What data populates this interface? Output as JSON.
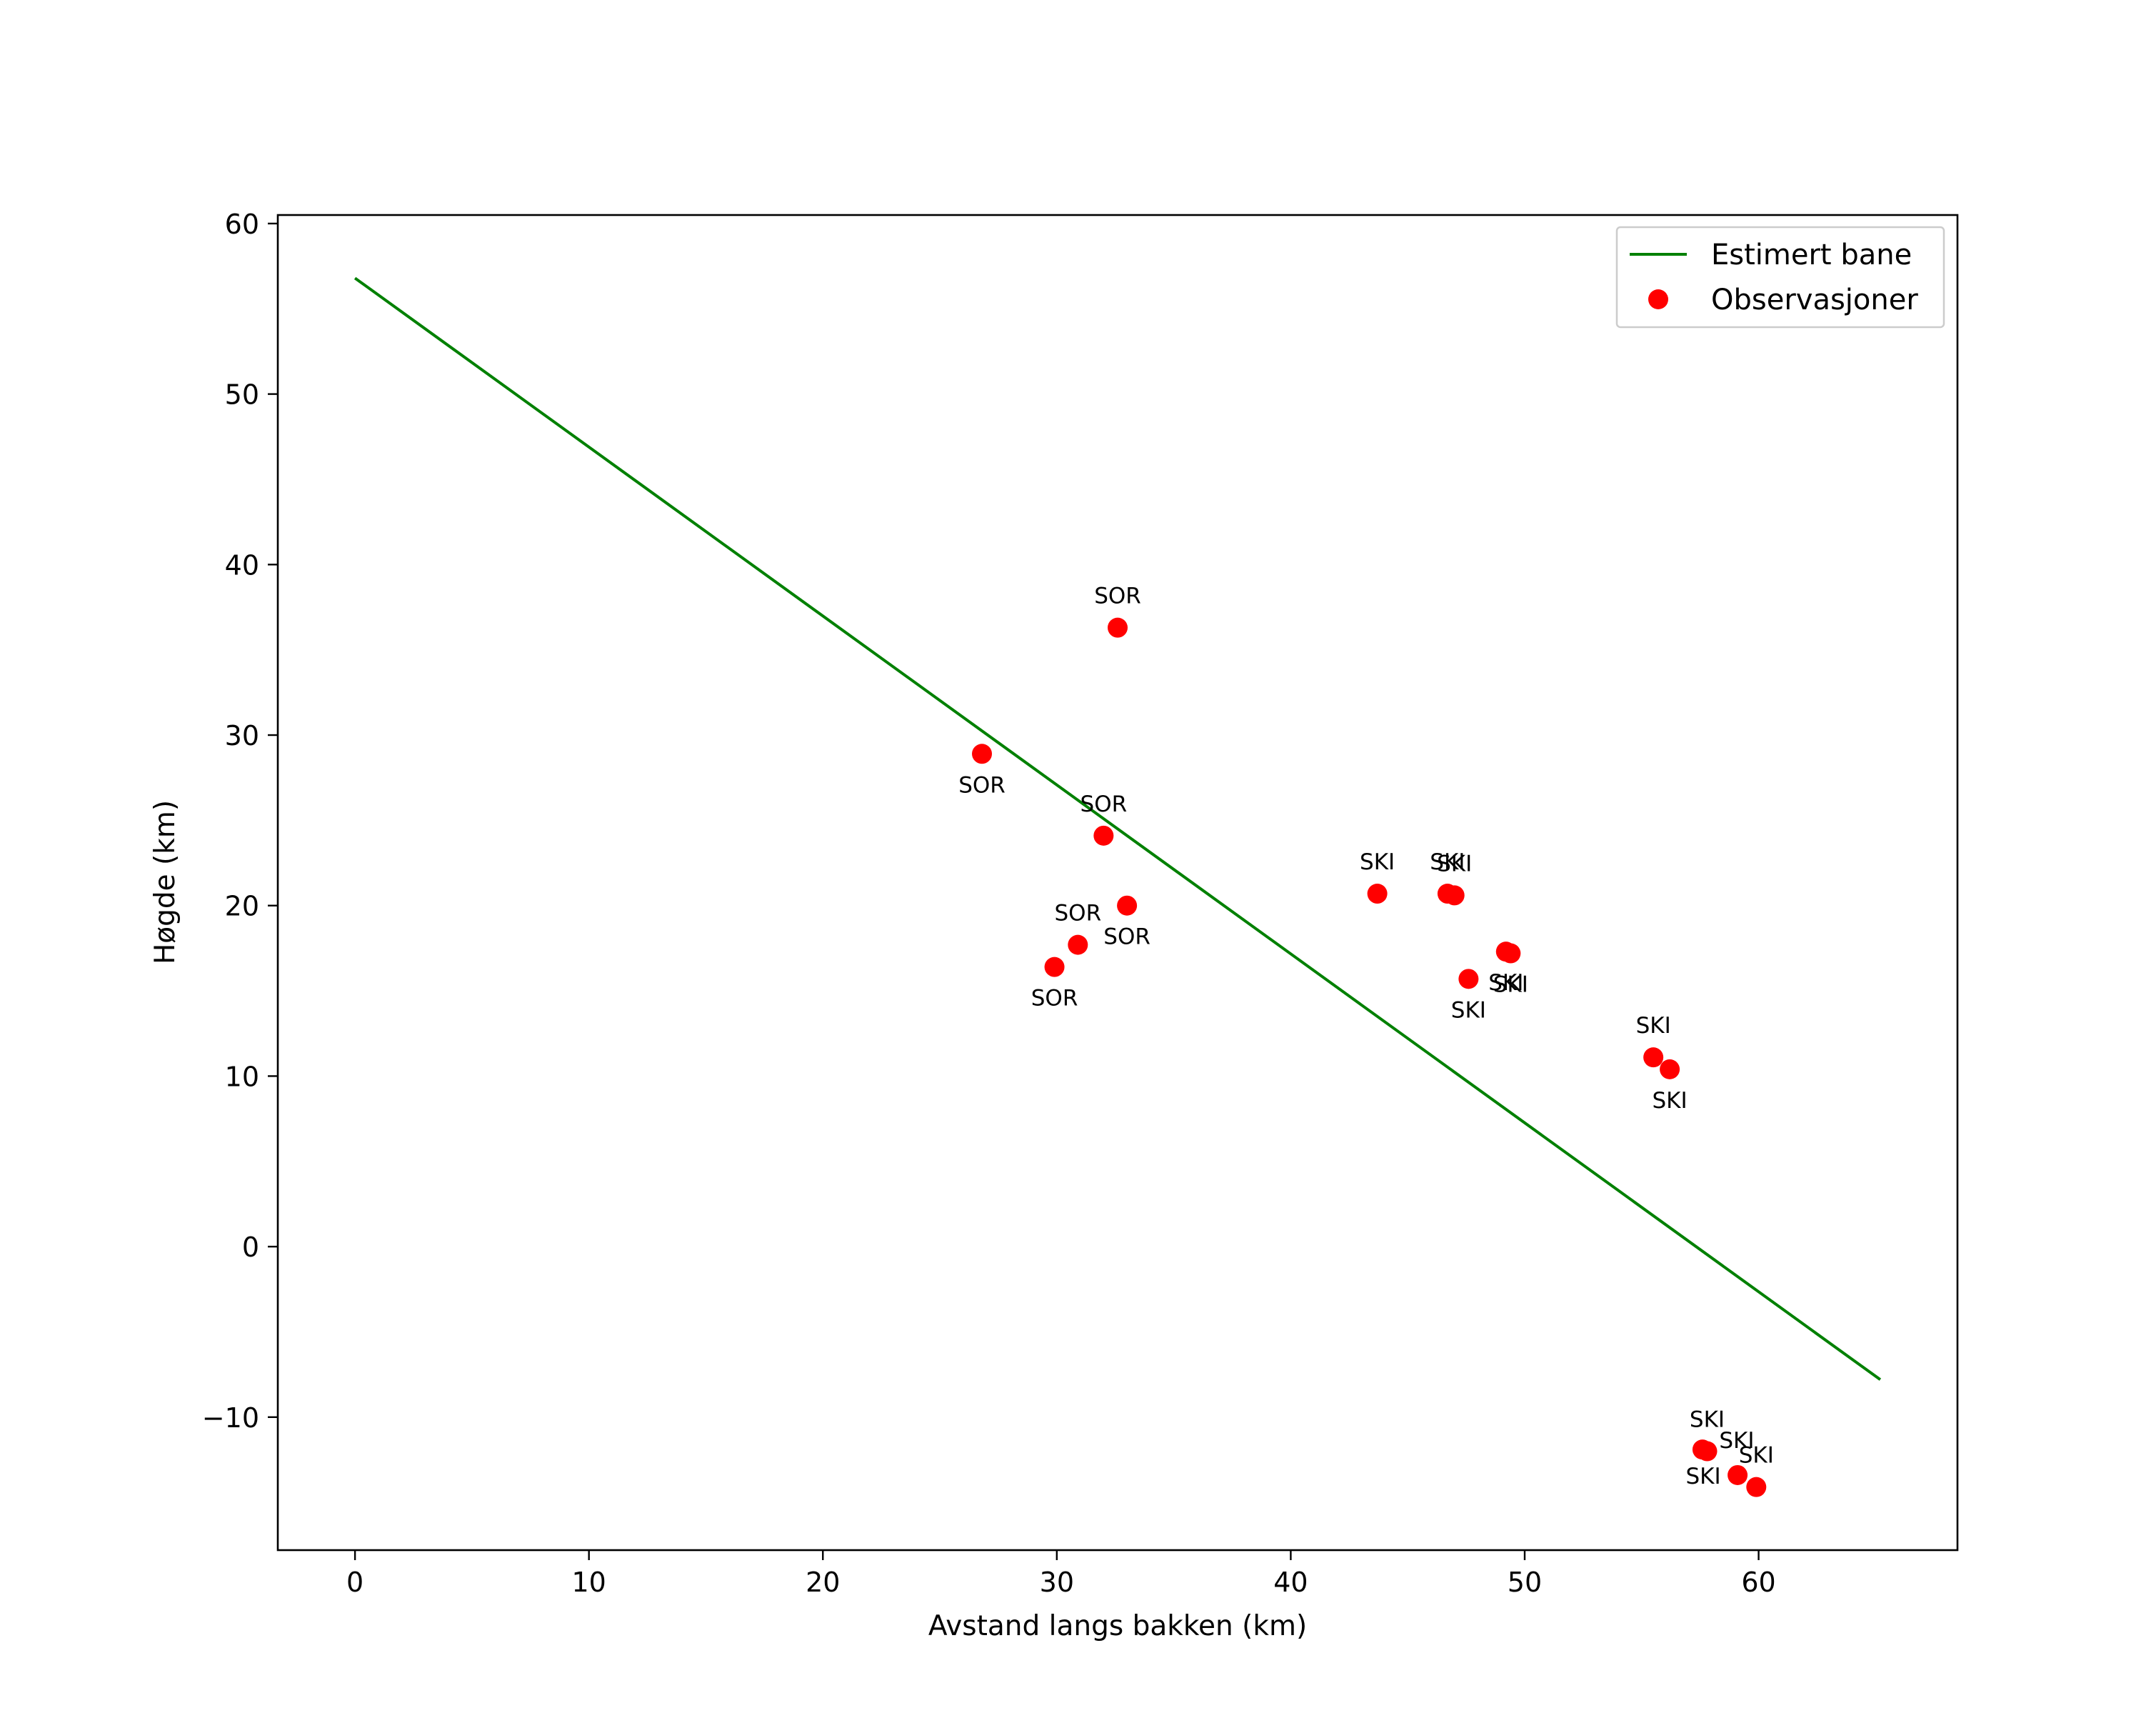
{
  "chart_data": {
    "type": "scatter",
    "title": "",
    "xlabel": "Avstand langs bakken (km)",
    "ylabel": "Høgde (km)",
    "xlim": [
      -3.3,
      68.5
    ],
    "ylim": [
      -17.8,
      60.5
    ],
    "xticks": [
      0,
      10,
      20,
      30,
      40,
      50,
      60
    ],
    "xtick_labels": [
      "0",
      "10",
      "20",
      "30",
      "40",
      "50",
      "60"
    ],
    "yticks": [
      -10,
      0,
      10,
      20,
      30,
      40,
      50,
      60
    ],
    "ytick_labels": [
      "−10",
      "0",
      "10",
      "20",
      "30",
      "40",
      "50",
      "60"
    ],
    "grid": false,
    "legend": {
      "position": "top-right",
      "entries": [
        {
          "label": "Estimert bane",
          "kind": "line",
          "color": "#008000"
        },
        {
          "label": "Observasjoner",
          "kind": "marker",
          "color": "#ff0000"
        }
      ]
    },
    "line_series": {
      "name": "Estimert bane",
      "color": "#008000",
      "x": [
        0,
        65.2
      ],
      "y": [
        56.8,
        -7.8
      ]
    },
    "scatter_series": {
      "name": "Observasjoner",
      "color": "#ff0000",
      "points": [
        {
          "x": 32.6,
          "y": 36.3,
          "label": "SOR",
          "label_pos": "above"
        },
        {
          "x": 26.8,
          "y": 28.9,
          "label": "SOR",
          "label_pos": "below"
        },
        {
          "x": 32.0,
          "y": 24.1,
          "label": "SOR",
          "label_pos": "above"
        },
        {
          "x": 33.0,
          "y": 20.0,
          "label": "SOR",
          "label_pos": "below"
        },
        {
          "x": 30.9,
          "y": 17.7,
          "label": "SOR",
          "label_pos": "above"
        },
        {
          "x": 29.9,
          "y": 16.4,
          "label": "SOR",
          "label_pos": "below"
        },
        {
          "x": 43.7,
          "y": 20.7,
          "label": "SKI",
          "label_pos": "above"
        },
        {
          "x": 46.7,
          "y": 20.7,
          "label": "SKI",
          "label_pos": "above"
        },
        {
          "x": 47.0,
          "y": 20.6,
          "label": "SKI",
          "label_pos": "above"
        },
        {
          "x": 49.2,
          "y": 17.3,
          "label": "SKI",
          "label_pos": "below"
        },
        {
          "x": 49.4,
          "y": 17.2,
          "label": "SKI",
          "label_pos": "below"
        },
        {
          "x": 47.6,
          "y": 15.7,
          "label": "SKI",
          "label_pos": "below"
        },
        {
          "x": 55.5,
          "y": 11.1,
          "label": "SKI",
          "label_pos": "above"
        },
        {
          "x": 56.2,
          "y": 10.4,
          "label": "SKI",
          "label_pos": "below"
        },
        {
          "x": 57.6,
          "y": -11.9,
          "label": "SKI",
          "label_pos": "right-above"
        },
        {
          "x": 57.8,
          "y": -12.0,
          "label": "SKI",
          "label_pos": "above"
        },
        {
          "x": 59.1,
          "y": -13.4,
          "label": "SKI",
          "label_pos": "left"
        },
        {
          "x": 59.9,
          "y": -14.1,
          "label": "SKI",
          "label_pos": "above"
        }
      ]
    }
  }
}
